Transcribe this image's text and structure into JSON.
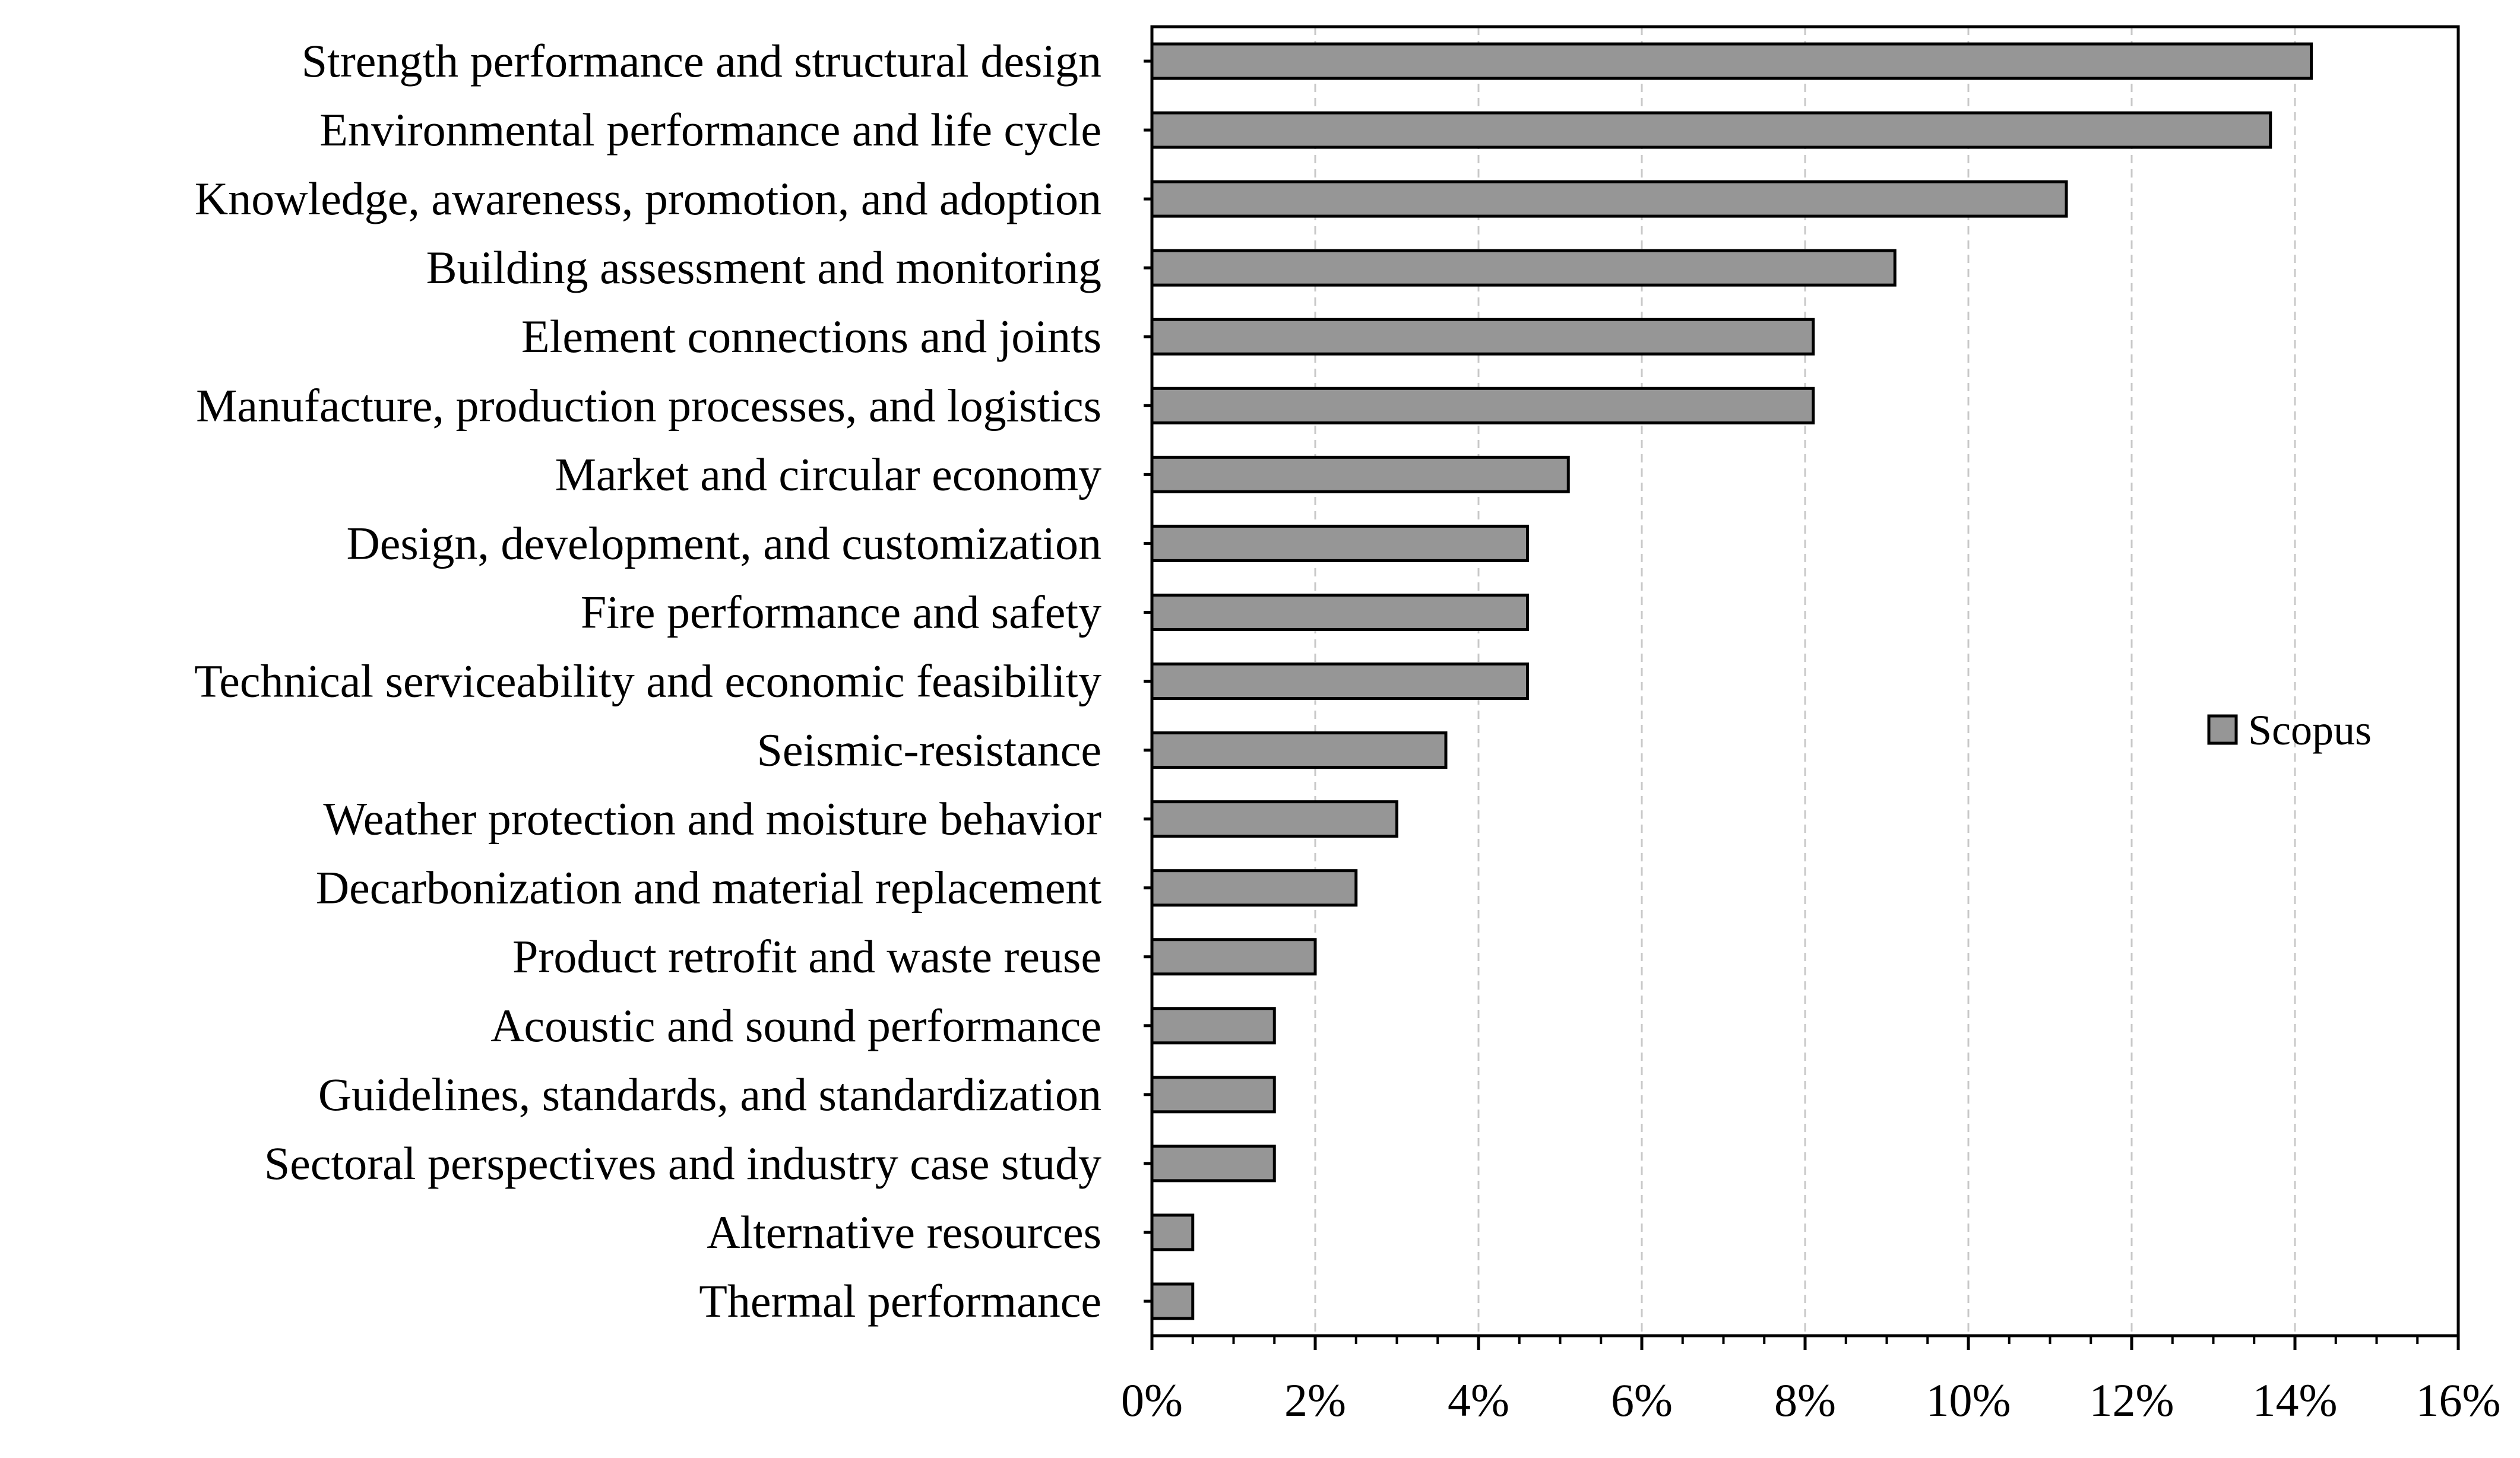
{
  "chart_data": {
    "type": "bar",
    "orientation": "horizontal",
    "title": "",
    "xlabel": "",
    "ylabel": "",
    "categories": [
      "Strength performance and structural design",
      "Environmental performance and life cycle",
      "Knowledge, awareness, promotion, and adoption",
      "Building assessment and monitoring",
      "Element connections and joints",
      "Manufacture, production processes, and logistics",
      "Market and circular economy",
      "Design, development, and customization",
      "Fire performance and safety",
      "Technical serviceability and economic feasibility",
      "Seismic-resistance",
      "Weather protection and moisture behavior",
      "Decarbonization and material replacement",
      "Product retrofit and waste reuse",
      "Acoustic and sound performance",
      "Guidelines, standards, and standardization",
      "Sectoral perspectives and industry case study",
      "Alternative resources",
      "Thermal performance"
    ],
    "series": [
      {
        "name": "Scopus",
        "color": "#969696",
        "values": [
          14.2,
          13.7,
          11.2,
          9.1,
          8.1,
          8.1,
          5.1,
          4.6,
          4.6,
          4.6,
          3.6,
          3.0,
          2.5,
          2.0,
          1.5,
          1.5,
          1.5,
          0.5,
          0.5
        ]
      }
    ],
    "xlim": [
      0,
      16
    ],
    "xticks": [
      0,
      2,
      4,
      6,
      8,
      10,
      12,
      14,
      16
    ],
    "xtick_labels": [
      "0%",
      "2%",
      "4%",
      "6%",
      "8%",
      "10%",
      "12%",
      "14%",
      "16%"
    ],
    "grid": "vertical dashed",
    "legend": {
      "position": "right-middle",
      "entries": [
        "Scopus"
      ]
    }
  }
}
